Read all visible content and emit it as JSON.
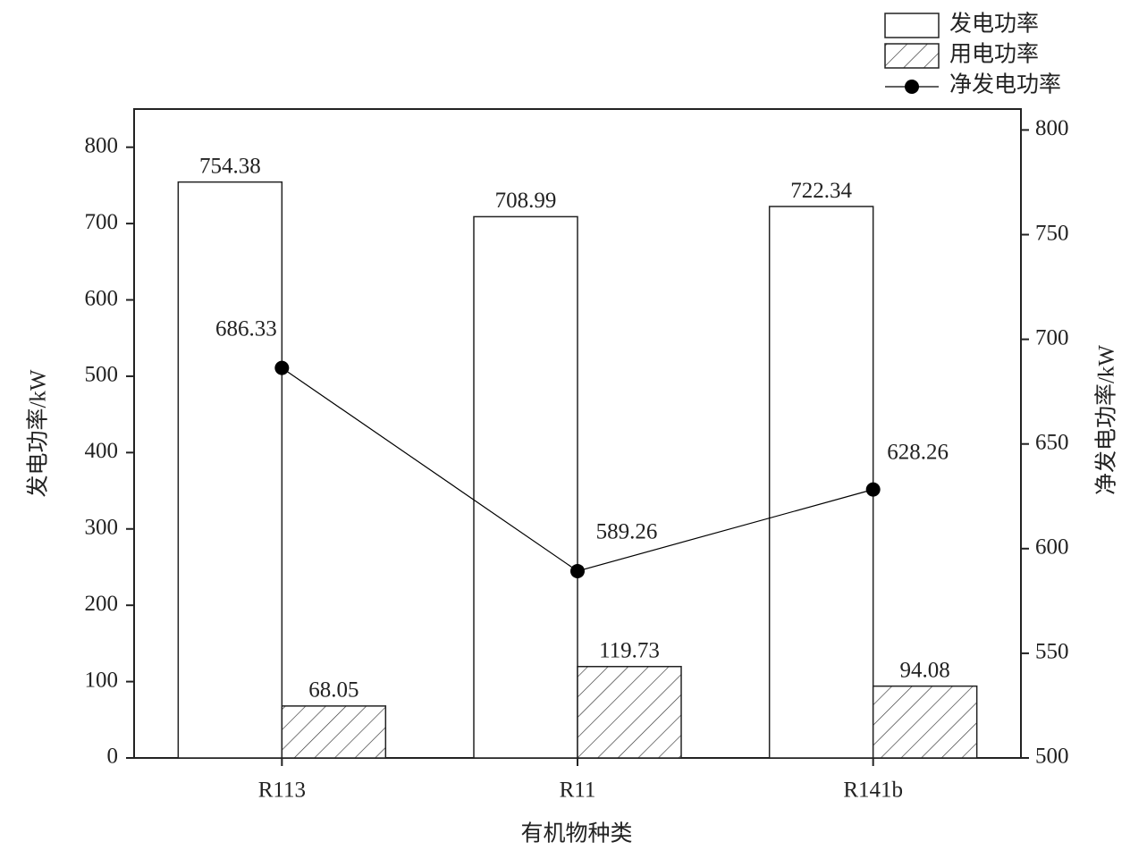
{
  "chart_data": {
    "type": "bar-line",
    "categories": [
      "R113",
      "R11",
      "R141b"
    ],
    "xlabel": "有机物种类",
    "ylabel": "发电功率/kW",
    "y2label": "净发电功率/kW",
    "ylim": [
      0,
      850
    ],
    "yticks": [
      0,
      100,
      200,
      300,
      400,
      500,
      600,
      700,
      800
    ],
    "y2lim": [
      500,
      810
    ],
    "y2ticks": [
      500,
      550,
      600,
      650,
      700,
      750,
      800
    ],
    "legend": "top-right",
    "series": [
      {
        "name": "发电功率",
        "type": "bar",
        "color": "#ffffff",
        "values": [
          754.38,
          708.99,
          722.34
        ]
      },
      {
        "name": "用电功率",
        "type": "bar",
        "hatch": true,
        "color": "#ffffff",
        "values": [
          68.05,
          119.73,
          94.08
        ]
      },
      {
        "name": "净发电功率",
        "type": "line",
        "axis": "y2",
        "color": "#000000",
        "values": [
          686.33,
          589.26,
          628.26
        ]
      }
    ]
  }
}
